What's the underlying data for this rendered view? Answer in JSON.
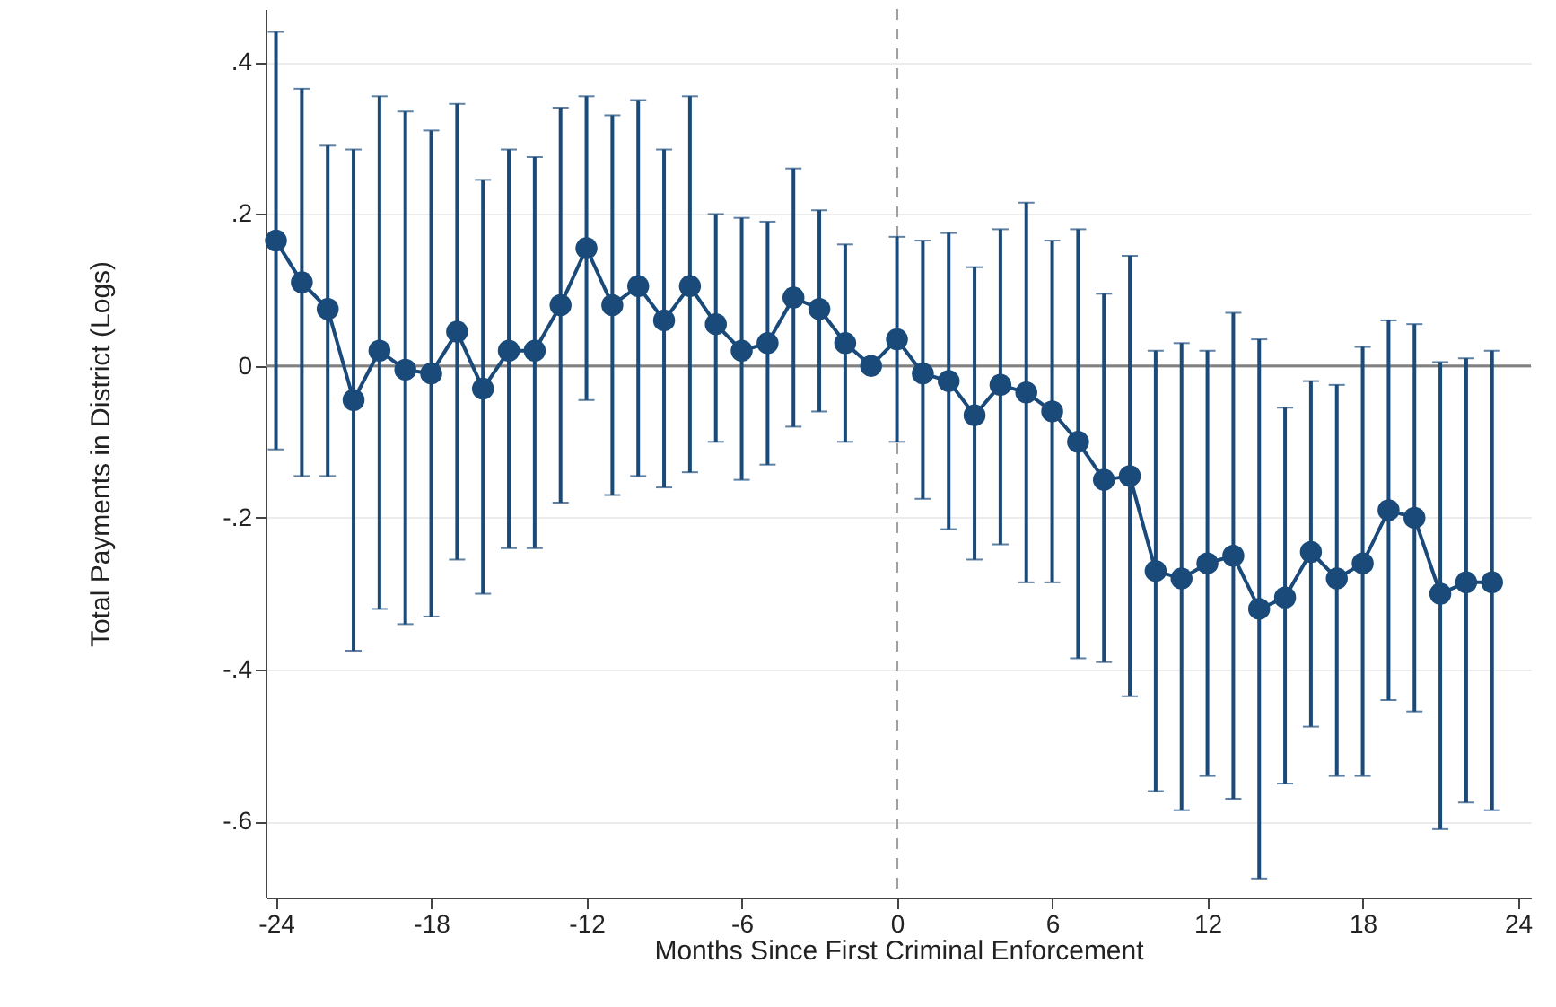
{
  "chart_data": {
    "type": "line",
    "xlabel": "Months Since First Criminal Enforcement",
    "ylabel": "Total Payments in District (Logs)",
    "x": [
      -24,
      -23,
      -22,
      -21,
      -20,
      -19,
      -18,
      -17,
      -16,
      -15,
      -14,
      -13,
      -12,
      -11,
      -10,
      -9,
      -8,
      -7,
      -6,
      -5,
      -4,
      -3,
      -2,
      -1,
      0,
      1,
      2,
      3,
      4,
      5,
      6,
      7,
      8,
      9,
      10,
      11,
      12,
      13,
      14,
      15,
      16,
      17,
      18,
      19,
      20,
      21,
      22,
      23
    ],
    "series": [
      {
        "color": "#1a4a7a",
        "values": [
          0.165,
          0.11,
          0.075,
          -0.045,
          0.02,
          -0.005,
          -0.01,
          0.045,
          -0.03,
          0.02,
          0.02,
          0.08,
          0.155,
          0.08,
          0.105,
          0.06,
          0.105,
          0.055,
          0.02,
          0.03,
          0.09,
          0.075,
          0.03,
          0.0,
          0.035,
          -0.01,
          -0.02,
          -0.065,
          -0.025,
          -0.035,
          -0.06,
          -0.1,
          -0.15,
          -0.145,
          -0.27,
          -0.28,
          -0.26,
          -0.25,
          -0.32,
          -0.305,
          -0.245,
          -0.28,
          -0.26,
          -0.19,
          -0.2,
          -0.3,
          -0.285,
          -0.285
        ],
        "errors": [
          [
            -0.11,
            0.44
          ],
          [
            -0.145,
            0.365
          ],
          [
            -0.145,
            0.29
          ],
          [
            -0.375,
            0.285
          ],
          [
            -0.32,
            0.355
          ],
          [
            -0.34,
            0.335
          ],
          [
            -0.33,
            0.31
          ],
          [
            -0.255,
            0.345
          ],
          [
            -0.3,
            0.245
          ],
          [
            -0.24,
            0.285
          ],
          [
            -0.24,
            0.275
          ],
          [
            -0.18,
            0.34
          ],
          [
            -0.045,
            0.355
          ],
          [
            -0.17,
            0.33
          ],
          [
            -0.145,
            0.35
          ],
          [
            -0.16,
            0.285
          ],
          [
            -0.14,
            0.355
          ],
          [
            -0.1,
            0.2
          ],
          [
            -0.15,
            0.195
          ],
          [
            -0.13,
            0.19
          ],
          [
            -0.08,
            0.26
          ],
          [
            -0.06,
            0.205
          ],
          [
            -0.1,
            0.16
          ],
          null,
          [
            -0.1,
            0.17
          ],
          [
            -0.175,
            0.165
          ],
          [
            -0.215,
            0.175
          ],
          [
            -0.255,
            0.13
          ],
          [
            -0.235,
            0.18
          ],
          [
            -0.285,
            0.215
          ],
          [
            -0.285,
            0.165
          ],
          [
            -0.385,
            0.18
          ],
          [
            -0.39,
            0.095
          ],
          [
            -0.435,
            0.145
          ],
          [
            -0.56,
            0.02
          ],
          [
            -0.585,
            0.03
          ],
          [
            -0.54,
            0.02
          ],
          [
            -0.57,
            0.07
          ],
          [
            -0.675,
            0.035
          ],
          [
            -0.55,
            -0.055
          ],
          [
            -0.475,
            -0.02
          ],
          [
            -0.54,
            -0.025
          ],
          [
            -0.54,
            0.025
          ],
          [
            -0.44,
            0.06
          ],
          [
            -0.455,
            0.055
          ],
          [
            -0.61,
            0.005
          ],
          [
            -0.575,
            0.01
          ],
          [
            -0.585,
            0.02
          ]
        ]
      }
    ],
    "xlim": [
      -24.4,
      24.5
    ],
    "xticks": [
      -24,
      -18,
      -12,
      -6,
      0,
      6,
      12,
      18,
      24
    ],
    "ylim": [
      -0.7,
      0.47
    ],
    "yticks": [
      {
        "value": -0.6,
        "label": "-.6"
      },
      {
        "value": -0.4,
        "label": "-.4"
      },
      {
        "value": -0.2,
        "label": "-.2"
      },
      0,
      {
        "value": 0.2,
        "label": ".2"
      },
      {
        "value": 0.4,
        "label": ".4"
      }
    ],
    "ref_lines": [
      {
        "axis": "y",
        "value": 0,
        "color": "#808080",
        "line_style": "solid"
      },
      {
        "axis": "x",
        "value": 0,
        "color": "#a0a0a0",
        "line_style": "dashed"
      }
    ],
    "grid": "y",
    "marker": "circle",
    "line_style": "solid"
  }
}
